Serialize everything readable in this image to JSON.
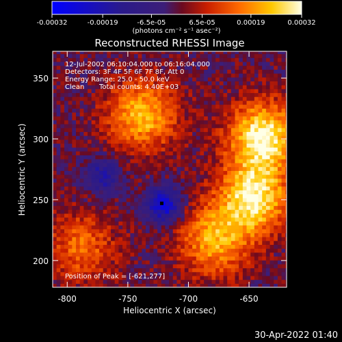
{
  "chart_data": {
    "type": "heatmap",
    "title": "Reconstructed RHESSI Image",
    "xlabel": "Heliocentric X (arcsec)",
    "ylabel": "Heliocentric Y (arcsec)",
    "xlim": [
      -812,
      -619
    ],
    "ylim": [
      178,
      372
    ],
    "x_ticks": [
      -800,
      -750,
      -700,
      -650
    ],
    "x_tick_labels": [
      "-800",
      "-750",
      "-700",
      "-650"
    ],
    "y_ticks": [
      200,
      250,
      300,
      350
    ],
    "y_tick_labels": [
      "200",
      "250",
      "300",
      "350"
    ],
    "colorbar": {
      "ticks": [
        -0.00032,
        -0.00019,
        -6.5e-05,
        6.5e-05,
        0.00019,
        0.00032
      ],
      "tick_labels": [
        "-0.00032",
        "-0.00019",
        "-6.5e-05",
        "6.5e-05",
        "0.00019",
        "0.00032"
      ],
      "units_label": "(photons cm⁻² s⁻¹ asec⁻²)",
      "colors": [
        "#0000ff",
        "#2a1a8a",
        "#3c1e78",
        "#6a0a20",
        "#c81e00",
        "#ff6a00",
        "#ffc800",
        "#ffffe6"
      ]
    },
    "annotations": {
      "time_range": "12-Jul-2002 06:10:04.000 to 06:16:04.000",
      "detectors": "Detectors: 3F 4F 5F 6F 7F 8F, Att 0",
      "energy": "Energy Range: 25.0 - 50.0 keV",
      "algorithm": "Clean",
      "total_counts": "Total counts: 4.40E+03",
      "peak": "Position of Peak = [-621,277]"
    },
    "peak_position": [
      -621,
      277
    ],
    "sources": [
      {
        "x": -740,
        "y": 318,
        "peak": 0.00024
      },
      {
        "x": -640,
        "y": 300,
        "peak": 0.00032
      },
      {
        "x": -648,
        "y": 250,
        "peak": 0.0003
      },
      {
        "x": -680,
        "y": 215,
        "peak": 0.00022
      },
      {
        "x": -790,
        "y": 210,
        "peak": 0.00015
      },
      {
        "x": -722,
        "y": 245,
        "peak": -0.00028
      },
      {
        "x": -772,
        "y": 268,
        "peak": -0.00018
      }
    ]
  },
  "footer": {
    "timestamp": "30-Apr-2022 01:40"
  }
}
